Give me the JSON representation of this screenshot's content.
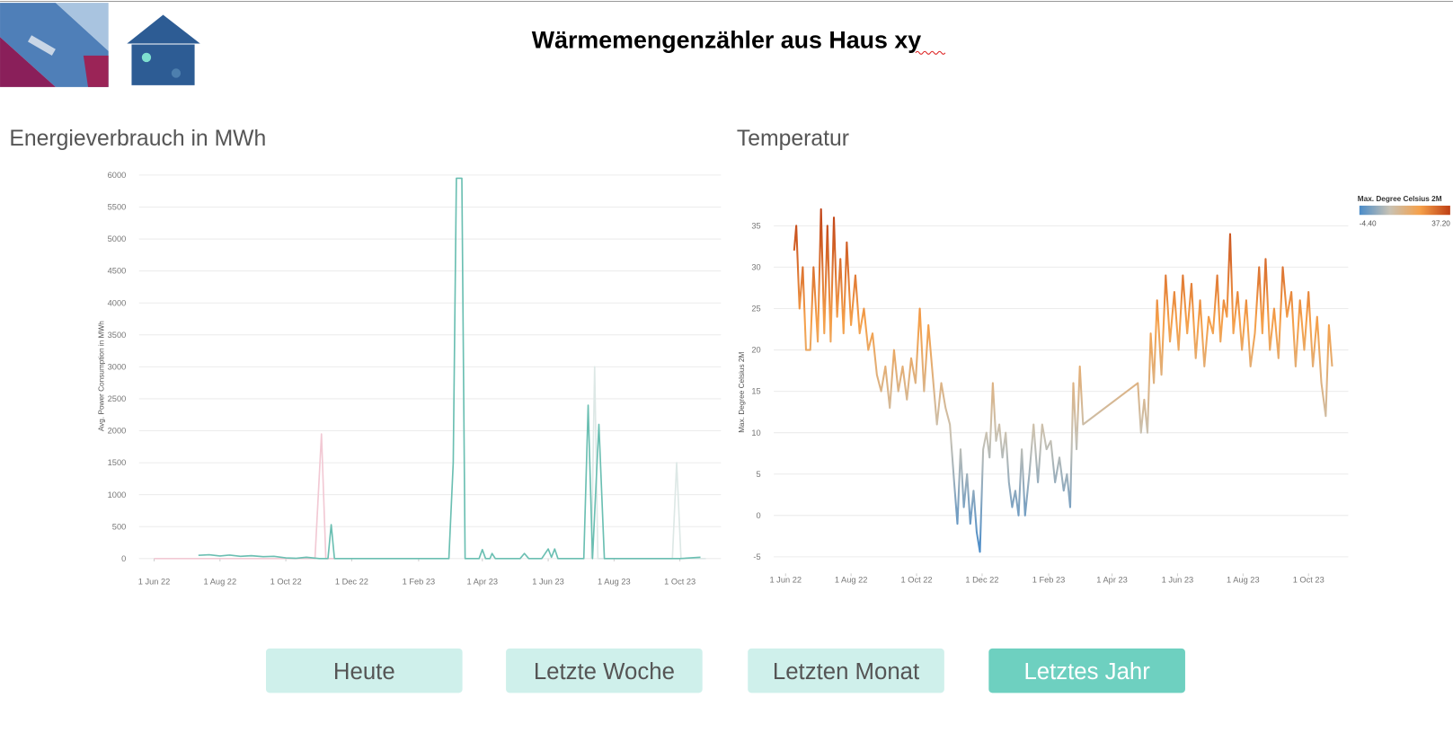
{
  "header": {
    "title": "Wärmemengenzähler aus Haus xy"
  },
  "buttons": [
    "Heute",
    "Letzte Woche",
    "Letzten Monat",
    "Letztes Jahr"
  ],
  "active_button": 3,
  "chart_data": [
    {
      "type": "line",
      "title": "Energieverbrauch in MWh",
      "y_label": "Avg. Power Consumption in MWh",
      "grid": true,
      "xlim": [
        "2022-05-18",
        "2023-11-08"
      ],
      "xticks": [
        {
          "value": "2022-06-01",
          "label": "1 Jun 22"
        },
        {
          "value": "2022-08-01",
          "label": "1 Aug 22"
        },
        {
          "value": "2022-10-01",
          "label": "1 Oct 22"
        },
        {
          "value": "2022-12-01",
          "label": "1 Dec 22"
        },
        {
          "value": "2023-02-01",
          "label": "1 Feb 23"
        },
        {
          "value": "2023-04-01",
          "label": "1 Apr 23"
        },
        {
          "value": "2023-06-01",
          "label": "1 Jun 23"
        },
        {
          "value": "2023-08-01",
          "label": "1 Aug 23"
        },
        {
          "value": "2023-10-01",
          "label": "1 Oct 23"
        }
      ],
      "ylim": [
        0,
        6000
      ],
      "yticks": [
        0,
        500,
        1000,
        1500,
        2000,
        2500,
        3000,
        3500,
        4000,
        4500,
        5000,
        5500,
        6000
      ],
      "series": [
        {
          "color": "#f2c9d4",
          "x": [
            "2022-06-01",
            "2022-10-28",
            "2022-11-03",
            "2022-11-07",
            "2022-11-15"
          ],
          "values": [
            0,
            0,
            1950,
            0,
            0
          ]
        },
        {
          "color": "#dde8e6",
          "x": [
            "2023-07-11",
            "2023-07-14",
            "2023-07-17",
            "2023-09-24",
            "2023-09-28",
            "2023-10-02",
            "2023-10-25"
          ],
          "values": [
            0,
            3000,
            0,
            0,
            1500,
            0,
            0
          ]
        },
        {
          "color": "#6bbfb2",
          "x": [
            "2022-07-12",
            "2022-07-22",
            "2022-08-01",
            "2022-08-10",
            "2022-08-20",
            "2022-08-30",
            "2022-09-10",
            "2022-09-20",
            "2022-10-01",
            "2022-10-10",
            "2022-10-20",
            "2022-11-01",
            "2022-11-09",
            "2022-11-12",
            "2022-11-15",
            "2023-03-01",
            "2023-03-05",
            "2023-03-08",
            "2023-03-13",
            "2023-03-16",
            "2023-03-29",
            "2023-04-01",
            "2023-04-04",
            "2023-04-08",
            "2023-04-10",
            "2023-04-13",
            "2023-05-06",
            "2023-05-10",
            "2023-05-14",
            "2023-05-26",
            "2023-06-01",
            "2023-06-04",
            "2023-06-07",
            "2023-06-10",
            "2023-06-14",
            "2023-07-04",
            "2023-07-08",
            "2023-07-12",
            "2023-07-18",
            "2023-07-23",
            "2023-10-01",
            "2023-10-20"
          ],
          "values": [
            50,
            60,
            40,
            55,
            35,
            45,
            30,
            35,
            10,
            5,
            20,
            0,
            0,
            530,
            0,
            0,
            1500,
            5950,
            5950,
            0,
            0,
            140,
            0,
            0,
            80,
            0,
            0,
            80,
            0,
            0,
            150,
            20,
            150,
            0,
            0,
            0,
            2400,
            0,
            2100,
            0,
            0,
            20
          ]
        }
      ]
    },
    {
      "type": "line",
      "title": "Temperatur",
      "y_label": "Max. Degree Celsius 2M",
      "grid": true,
      "xlim": [
        "2022-05-21",
        "2023-11-07"
      ],
      "xticks": [
        {
          "value": "2022-06-01",
          "label": "1 Jun 22"
        },
        {
          "value": "2022-08-01",
          "label": "1 Aug 22"
        },
        {
          "value": "2022-10-01",
          "label": "1 Oct 22"
        },
        {
          "value": "2022-12-01",
          "label": "1 Dec 22"
        },
        {
          "value": "2023-02-01",
          "label": "1 Feb 23"
        },
        {
          "value": "2023-04-01",
          "label": "1 Apr 23"
        },
        {
          "value": "2023-06-01",
          "label": "1 Jun 23"
        },
        {
          "value": "2023-08-01",
          "label": "1 Aug 23"
        },
        {
          "value": "2023-10-01",
          "label": "1 Oct 23"
        }
      ],
      "ylim": [
        -7,
        39
      ],
      "yticks": [
        -5,
        0,
        5,
        10,
        15,
        20,
        25,
        30,
        35
      ],
      "color_scale": {
        "title": "Max. Degree Celsius 2M",
        "min": {
          "value": -4.4,
          "label": "-4.40"
        },
        "max": {
          "value": 37.2,
          "label": "37.20"
        },
        "colors": [
          "#4a8cc9",
          "#c8c2b4",
          "#f5a04a",
          "#bf4015"
        ]
      },
      "series": [
        {
          "x": [
            "2022-06-09",
            "2022-06-11",
            "2022-06-14",
            "2022-06-17",
            "2022-06-20",
            "2022-06-24",
            "2022-06-27",
            "2022-07-01",
            "2022-07-04",
            "2022-07-07",
            "2022-07-10",
            "2022-07-13",
            "2022-07-16",
            "2022-07-19",
            "2022-07-22",
            "2022-07-25",
            "2022-07-28",
            "2022-08-01",
            "2022-08-05",
            "2022-08-09",
            "2022-08-13",
            "2022-08-17",
            "2022-08-21",
            "2022-08-25",
            "2022-08-29",
            "2022-09-02",
            "2022-09-06",
            "2022-09-10",
            "2022-09-14",
            "2022-09-18",
            "2022-09-22",
            "2022-09-26",
            "2022-09-30",
            "2022-10-04",
            "2022-10-08",
            "2022-10-12",
            "2022-10-16",
            "2022-10-20",
            "2022-10-24",
            "2022-10-28",
            "2022-11-01",
            "2022-11-05",
            "2022-11-08",
            "2022-11-11",
            "2022-11-14",
            "2022-11-17",
            "2022-11-20",
            "2022-11-23",
            "2022-11-26",
            "2022-11-29",
            "2022-12-02",
            "2022-12-05",
            "2022-12-08",
            "2022-12-11",
            "2022-12-14",
            "2022-12-17",
            "2022-12-20",
            "2022-12-23",
            "2022-12-26",
            "2022-12-29",
            "2023-01-01",
            "2023-01-04",
            "2023-01-07",
            "2023-01-10",
            "2023-01-14",
            "2023-01-18",
            "2023-01-22",
            "2023-01-26",
            "2023-01-30",
            "2023-02-03",
            "2023-02-07",
            "2023-02-11",
            "2023-02-15",
            "2023-02-18",
            "2023-02-21",
            "2023-02-24",
            "2023-02-27",
            "2023-03-02",
            "2023-03-05",
            "2023-04-25",
            "2023-04-28",
            "2023-05-01",
            "2023-05-04",
            "2023-05-07",
            "2023-05-10",
            "2023-05-13",
            "2023-05-17",
            "2023-05-21",
            "2023-05-25",
            "2023-05-29",
            "2023-06-02",
            "2023-06-06",
            "2023-06-10",
            "2023-06-14",
            "2023-06-18",
            "2023-06-22",
            "2023-06-26",
            "2023-06-30",
            "2023-07-04",
            "2023-07-08",
            "2023-07-11",
            "2023-07-14",
            "2023-07-17",
            "2023-07-20",
            "2023-07-23",
            "2023-07-27",
            "2023-07-31",
            "2023-08-04",
            "2023-08-08",
            "2023-08-12",
            "2023-08-16",
            "2023-08-19",
            "2023-08-22",
            "2023-08-26",
            "2023-08-30",
            "2023-09-03",
            "2023-09-07",
            "2023-09-11",
            "2023-09-15",
            "2023-09-19",
            "2023-09-23",
            "2023-09-27",
            "2023-10-01",
            "2023-10-05",
            "2023-10-09",
            "2023-10-13",
            "2023-10-17",
            "2023-10-20",
            "2023-10-23"
          ],
          "values": [
            32,
            35,
            25,
            30,
            20,
            20,
            30,
            21,
            37,
            22,
            35,
            21,
            36,
            24,
            31,
            22,
            33,
            23,
            29,
            22,
            25,
            20,
            22,
            17,
            15,
            18,
            13,
            20,
            15,
            18,
            14,
            19,
            16,
            25,
            15,
            23,
            17,
            11,
            16,
            13,
            11,
            4,
            -1,
            8,
            1,
            5,
            -1,
            3,
            -2,
            -4.4,
            8,
            10,
            7,
            16,
            9,
            11,
            7,
            10,
            4,
            1,
            3,
            0,
            8,
            0,
            5,
            11,
            4,
            11,
            8,
            9,
            4,
            7,
            3,
            5,
            1,
            16,
            8,
            18,
            11,
            16,
            10,
            14,
            10,
            22,
            16,
            26,
            17,
            29,
            21,
            27,
            20,
            29,
            22,
            28,
            19,
            26,
            18,
            24,
            22,
            29,
            21,
            26,
            24,
            34,
            22,
            27,
            20,
            26,
            18,
            22,
            30,
            22,
            31,
            20,
            25,
            19,
            30,
            24,
            27,
            18,
            26,
            20,
            27,
            18,
            24,
            16,
            12,
            23,
            18
          ]
        }
      ]
    }
  ]
}
